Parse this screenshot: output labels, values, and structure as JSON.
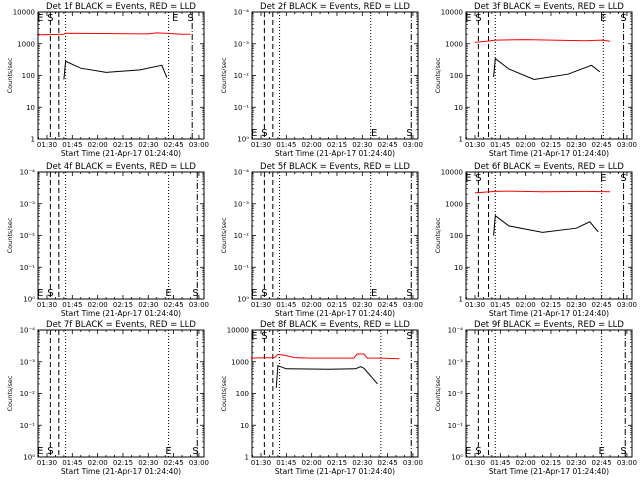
{
  "colors": {
    "events": "#000000",
    "lld": "#ff0000",
    "axis": "#000000",
    "background": "#ffffff"
  },
  "chart_data": [
    {
      "type": "line",
      "title": "Det 1f BLACK = Events, RED = LLD",
      "xlabel": "Start Time (21-Apr-17 01:24:40)",
      "ylabel": "Counts/sec",
      "x_tick_labels": [
        "01:30",
        "01:45",
        "02:00",
        "02:15",
        "02:30",
        "02:45",
        "03:00"
      ],
      "y_tick_labels": [
        "1",
        "10",
        "100",
        "1000",
        "10000"
      ],
      "y_scale": "log",
      "ylim": [
        1,
        10000
      ],
      "series": [
        {
          "name": "LLD",
          "color": "#ff0000",
          "x": [
            "01:24",
            "01:40",
            "01:41",
            "02:00",
            "02:30",
            "02:35",
            "02:40",
            "02:50",
            "02:55"
          ],
          "y": [
            1900,
            2000,
            2150,
            2100,
            2050,
            2200,
            2150,
            2000,
            2000
          ]
        },
        {
          "name": "Events",
          "color": "#000000",
          "x": [
            "01:40",
            "01:41",
            "01:50",
            "02:05",
            "02:25",
            "02:38",
            "02:41"
          ],
          "y": [
            75,
            280,
            170,
            125,
            150,
            210,
            85
          ]
        }
      ],
      "markers": [
        {
          "label": "E",
          "x": "01:26",
          "label_pos": "top"
        },
        {
          "label": "S",
          "x": "01:32",
          "label_pos": "top"
        },
        {
          "label": "E",
          "x": "02:46",
          "label_pos": "top"
        },
        {
          "label": "S",
          "x": "02:55",
          "label_pos": "top"
        }
      ],
      "dashed_x": [
        "01:32",
        "01:37"
      ],
      "dotted_x": [
        "01:41",
        "02:42"
      ],
      "dashdot_x": [
        "02:56"
      ]
    },
    {
      "type": "line",
      "title": "Det 2f BLACK = Events, RED = LLD",
      "xlabel": "Start Time (21-Apr-17 01:24:40)",
      "ylabel": "Counts/sec",
      "x_tick_labels": [
        "01:30",
        "01:45",
        "02:00",
        "02:15",
        "02:30",
        "02:45",
        "03:00"
      ],
      "y_tick_labels": [
        "10⁰",
        "10⁻¹",
        "10⁻²",
        "10⁻³",
        "10⁻⁴"
      ],
      "y_scale": "log",
      "series": [],
      "markers": [
        {
          "label": "E",
          "x": "01:26",
          "label_pos": "bottom"
        },
        {
          "label": "S",
          "x": "01:32",
          "label_pos": "bottom"
        },
        {
          "label": "E",
          "x": "02:37",
          "label_pos": "bottom"
        },
        {
          "label": "S",
          "x": "02:58",
          "label_pos": "bottom"
        }
      ],
      "dashed_x": [
        "01:32",
        "01:37"
      ],
      "dotted_x": [
        "01:41",
        "02:35"
      ],
      "dashdot_x": [
        "02:59"
      ]
    },
    {
      "type": "line",
      "title": "Det 3f BLACK = Events, RED = LLD",
      "xlabel": "Start Time (21-Apr-17 01:24:40)",
      "ylabel": "Counts/sec",
      "x_tick_labels": [
        "01:30",
        "01:45",
        "02:00",
        "02:15",
        "02:30",
        "02:45",
        "03:00"
      ],
      "y_tick_labels": [
        "1",
        "10",
        "100",
        "1000",
        "10000"
      ],
      "y_scale": "log",
      "ylim": [
        1,
        10000
      ],
      "series": [
        {
          "name": "LLD",
          "color": "#ff0000",
          "x": [
            "01:30",
            "01:37",
            "01:42",
            "02:00",
            "02:35",
            "02:45",
            "02:50"
          ],
          "y": [
            1100,
            1200,
            1300,
            1350,
            1250,
            1300,
            1200
          ]
        },
        {
          "name": "Events",
          "color": "#000000",
          "x": [
            "01:41",
            "01:42",
            "01:50",
            "02:05",
            "02:25",
            "02:39",
            "02:44"
          ],
          "y": [
            90,
            340,
            160,
            75,
            110,
            210,
            130
          ]
        }
      ],
      "markers": [
        {
          "label": "E",
          "x": "01:26",
          "label_pos": "top"
        },
        {
          "label": "S",
          "x": "01:32",
          "label_pos": "top"
        },
        {
          "label": "E",
          "x": "02:46",
          "label_pos": "top"
        },
        {
          "label": "S",
          "x": "02:58",
          "label_pos": "top"
        }
      ],
      "dashed_x": [
        "01:32",
        "01:38"
      ],
      "dotted_x": [
        "01:42",
        "02:46"
      ],
      "dashdot_x": [
        "02:58"
      ]
    },
    {
      "type": "line",
      "title": "Det 4f BLACK = Events, RED = LLD",
      "xlabel": "Start Time (21-Apr-17 01:24:40)",
      "ylabel": "Counts/sec",
      "x_tick_labels": [
        "01:30",
        "01:45",
        "02:00",
        "02:15",
        "02:30",
        "02:45",
        "03:00"
      ],
      "y_tick_labels": [
        "10⁰",
        "10⁻¹",
        "10⁻²",
        "10⁻³",
        "10⁻⁴"
      ],
      "y_scale": "log",
      "series": [],
      "markers": [
        {
          "label": "E",
          "x": "01:26",
          "label_pos": "bottom"
        },
        {
          "label": "S",
          "x": "01:32",
          "label_pos": "bottom"
        },
        {
          "label": "E",
          "x": "02:42",
          "label_pos": "bottom"
        },
        {
          "label": "S",
          "x": "02:58",
          "label_pos": "bottom"
        }
      ],
      "dashed_x": [
        "01:32",
        "01:37"
      ],
      "dotted_x": [
        "01:41",
        "02:42"
      ],
      "dashdot_x": [
        "02:59"
      ]
    },
    {
      "type": "line",
      "title": "Det 5f BLACK = Events, RED = LLD",
      "xlabel": "Start Time (21-Apr-17 01:24:40)",
      "ylabel": "Counts/sec",
      "x_tick_labels": [
        "01:30",
        "01:45",
        "02:00",
        "02:15",
        "02:30",
        "02:45",
        "03:00"
      ],
      "y_tick_labels": [
        "10⁰",
        "10⁻¹",
        "10⁻²",
        "10⁻³",
        "10⁻⁴"
      ],
      "y_scale": "log",
      "series": [],
      "markers": [
        {
          "label": "E",
          "x": "01:26",
          "label_pos": "bottom"
        },
        {
          "label": "S",
          "x": "01:32",
          "label_pos": "bottom"
        },
        {
          "label": "E",
          "x": "02:37",
          "label_pos": "bottom"
        },
        {
          "label": "S",
          "x": "02:58",
          "label_pos": "bottom"
        }
      ],
      "dashed_x": [
        "01:32",
        "01:37"
      ],
      "dotted_x": [
        "01:41",
        "02:35"
      ],
      "dashdot_x": [
        "02:59"
      ]
    },
    {
      "type": "line",
      "title": "Det 6f BLACK = Events, RED = LLD",
      "xlabel": "Start Time (21-Apr-17 01:24:40)",
      "ylabel": "Counts/sec",
      "x_tick_labels": [
        "01:30",
        "01:45",
        "02:00",
        "02:15",
        "02:30",
        "02:45",
        "03:00"
      ],
      "y_tick_labels": [
        "1",
        "10",
        "100",
        "1000",
        "10000"
      ],
      "y_scale": "log",
      "ylim": [
        1,
        10000
      ],
      "series": [
        {
          "name": "LLD",
          "color": "#ff0000",
          "x": [
            "01:30",
            "01:42",
            "01:50",
            "02:10",
            "02:35",
            "02:50"
          ],
          "y": [
            2200,
            2450,
            2500,
            2400,
            2450,
            2400
          ]
        },
        {
          "name": "Events",
          "color": "#000000",
          "x": [
            "01:41",
            "01:42",
            "01:50",
            "02:10",
            "02:30",
            "02:38",
            "02:43"
          ],
          "y": [
            100,
            420,
            200,
            125,
            170,
            270,
            130
          ]
        }
      ],
      "markers": [
        {
          "label": "E",
          "x": "01:26",
          "label_pos": "top"
        },
        {
          "label": "S",
          "x": "01:32",
          "label_pos": "top"
        },
        {
          "label": "E",
          "x": "02:46",
          "label_pos": "top"
        },
        {
          "label": "S",
          "x": "02:58",
          "label_pos": "top"
        }
      ],
      "dashed_x": [
        "01:32",
        "01:38"
      ],
      "dotted_x": [
        "01:42",
        "02:45"
      ],
      "dashdot_x": [
        "02:58"
      ]
    },
    {
      "type": "line",
      "title": "Det 7f BLACK = Events, RED = LLD",
      "xlabel": "Start Time (21-Apr-17 01:24:40)",
      "ylabel": "Counts/sec",
      "x_tick_labels": [
        "01:30",
        "01:45",
        "02:00",
        "02:15",
        "02:30",
        "02:45",
        "03:00"
      ],
      "y_tick_labels": [
        "10⁰",
        "10⁻¹",
        "10⁻²",
        "10⁻³",
        "10⁻⁴"
      ],
      "y_scale": "log",
      "series": [],
      "markers": [
        {
          "label": "E",
          "x": "01:26",
          "label_pos": "bottom"
        },
        {
          "label": "S",
          "x": "01:32",
          "label_pos": "bottom"
        },
        {
          "label": "E",
          "x": "02:42",
          "label_pos": "bottom"
        },
        {
          "label": "S",
          "x": "02:58",
          "label_pos": "bottom"
        }
      ],
      "dashed_x": [
        "01:32",
        "01:37"
      ],
      "dotted_x": [
        "01:41",
        "02:42"
      ],
      "dashdot_x": [
        "02:59"
      ]
    },
    {
      "type": "line",
      "title": "Det 8f BLACK = Events, RED = LLD",
      "xlabel": "Start Time (21-Apr-17 01:24:40)",
      "ylabel": "Counts/sec",
      "x_tick_labels": [
        "01:30",
        "01:45",
        "02:00",
        "02:15",
        "02:30",
        "02:45",
        "03:00"
      ],
      "y_tick_labels": [
        "1",
        "10",
        "100",
        "1000",
        "10000"
      ],
      "y_scale": "log",
      "ylim": [
        1,
        10000
      ],
      "series": [
        {
          "name": "LLD",
          "color": "#ff0000",
          "x": [
            "01:24",
            "01:38",
            "01:40",
            "01:44",
            "01:50",
            "02:00",
            "02:20",
            "02:25",
            "02:27",
            "02:31",
            "02:33",
            "02:40",
            "02:52"
          ],
          "y": [
            1300,
            1350,
            1700,
            1600,
            1350,
            1300,
            1300,
            1300,
            1750,
            1750,
            1300,
            1300,
            1250
          ]
        },
        {
          "name": "Events",
          "color": "#000000",
          "x": [
            "01:39",
            "01:40",
            "01:45",
            "02:10",
            "02:26",
            "02:29",
            "02:31",
            "02:39"
          ],
          "y": [
            150,
            750,
            600,
            580,
            600,
            700,
            620,
            200
          ]
        }
      ],
      "markers": [
        {
          "label": "E",
          "x": "01:26",
          "label_pos": "top"
        },
        {
          "label": "S",
          "x": "01:32",
          "label_pos": "top"
        },
        {
          "label": "S",
          "x": "02:58",
          "label_pos": "top"
        }
      ],
      "dashed_x": [
        "01:32",
        "01:37"
      ],
      "dotted_x": [
        "01:41",
        "02:41"
      ],
      "dashdot_x": [
        "02:59"
      ]
    },
    {
      "type": "line",
      "title": "Det 9f BLACK = Events, RED = LLD",
      "xlabel": "Start Time (21-Apr-17 01:24:40)",
      "ylabel": "Counts/sec",
      "x_tick_labels": [
        "01:30",
        "01:45",
        "02:00",
        "02:15",
        "02:30",
        "02:45",
        "03:00"
      ],
      "y_tick_labels": [
        "10⁰",
        "10⁻¹",
        "10⁻²",
        "10⁻³",
        "10⁻⁴"
      ],
      "y_scale": "log",
      "series": [],
      "markers": [
        {
          "label": "E",
          "x": "01:26",
          "label_pos": "bottom"
        },
        {
          "label": "S",
          "x": "01:32",
          "label_pos": "bottom"
        },
        {
          "label": "E",
          "x": "02:45",
          "label_pos": "bottom"
        },
        {
          "label": "S",
          "x": "02:58",
          "label_pos": "bottom"
        }
      ],
      "dashed_x": [
        "01:32",
        "01:38"
      ],
      "dotted_x": [
        "01:42",
        "02:45"
      ],
      "dashdot_x": [
        "02:59"
      ]
    }
  ]
}
